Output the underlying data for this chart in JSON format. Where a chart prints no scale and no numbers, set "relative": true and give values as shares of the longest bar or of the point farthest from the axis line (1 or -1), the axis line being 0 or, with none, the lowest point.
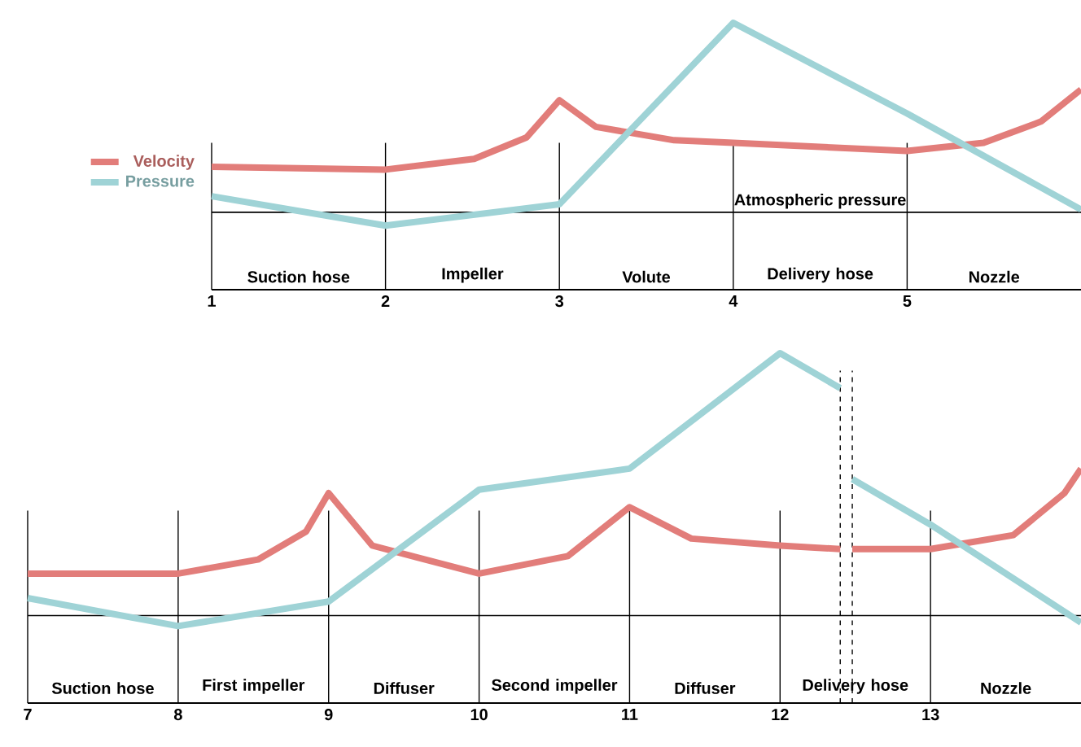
{
  "chart_data": [
    {
      "type": "line",
      "relative": true,
      "xlim": [
        1,
        6
      ],
      "tick_labels": "x",
      "legend": "left",
      "line_style": "solid",
      "marker": "none",
      "xticks": [
        1,
        2,
        3,
        4,
        5
      ],
      "series": [
        {
          "name": "Velocity",
          "color": "#e27d7a",
          "x": [
            1,
            2,
            2.51,
            2.81,
            3,
            3.21,
            3.66,
            4,
            5,
            5.44,
            5.77,
            6
          ],
          "values": [
            0.46,
            0.45,
            0.49,
            0.57,
            0.71,
            0.61,
            0.56,
            0.55,
            0.52,
            0.55,
            0.63,
            0.75
          ]
        },
        {
          "name": "Pressure",
          "color": "#9fd3d6",
          "x": [
            1,
            2,
            3,
            4,
            5,
            6
          ],
          "values": [
            0.35,
            0.24,
            0.32,
            1.0,
            0.66,
            0.3
          ]
        }
      ],
      "ref_lines": [
        {
          "axis": "y",
          "value": 0.29,
          "label": "Atmospheric pressure"
        },
        {
          "axis": "x",
          "value": 1
        },
        {
          "axis": "x",
          "value": 2
        },
        {
          "axis": "x",
          "value": 3
        },
        {
          "axis": "x",
          "value": 4
        },
        {
          "axis": "x",
          "value": 5
        }
      ],
      "annotations": [
        "Suction hose",
        "Impeller",
        "Volute",
        "Delivery hose",
        "Nozzle"
      ]
    },
    {
      "type": "line",
      "relative": true,
      "xlim": [
        7,
        14
      ],
      "tick_labels": "x",
      "line_style": "solid",
      "marker": "none",
      "xticks": [
        7,
        8,
        9,
        10,
        11,
        12,
        13
      ],
      "series": [
        {
          "color": "#e27d7a",
          "x": [
            7,
            8,
            8.53,
            8.85,
            9,
            9.29,
            10,
            10.59,
            11,
            11.41,
            12,
            12.4,
            12.44,
            12.48,
            13,
            13.55,
            13.89,
            14
          ],
          "values": [
            0.37,
            0.37,
            0.41,
            0.49,
            0.6,
            0.45,
            0.37,
            0.42,
            0.56,
            0.47,
            0.45,
            0.44,
            null,
            0.44,
            0.44,
            0.48,
            0.6,
            0.67
          ]
        },
        {
          "color": "#9fd3d6",
          "x": [
            7,
            8,
            9,
            10,
            11,
            12,
            12.4,
            12.44,
            12.48,
            13,
            14
          ],
          "values": [
            0.3,
            0.22,
            0.29,
            0.61,
            0.67,
            1.0,
            0.9,
            null,
            0.64,
            0.51,
            0.23
          ]
        }
      ],
      "ref_lines": [
        {
          "axis": "y",
          "value": 0.25
        },
        {
          "axis": "x",
          "value": 7
        },
        {
          "axis": "x",
          "value": 8
        },
        {
          "axis": "x",
          "value": 9
        },
        {
          "axis": "x",
          "value": 10
        },
        {
          "axis": "x",
          "value": 11
        },
        {
          "axis": "x",
          "value": 12
        },
        {
          "axis": "x",
          "value": 13
        },
        {
          "axis": "x",
          "value": 12.4,
          "line_style": "dashed"
        },
        {
          "axis": "x",
          "value": 12.48,
          "line_style": "dashed"
        }
      ],
      "annotations": [
        "Suction hose",
        "First impeller",
        "Diffuser",
        "Second impeller",
        "Diffuser",
        "Delivery hose",
        "Nozzle"
      ]
    }
  ]
}
